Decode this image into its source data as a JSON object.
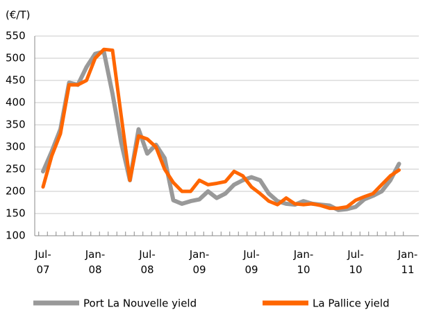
{
  "chart_data": {
    "type": "line",
    "y_label": "(€/T)",
    "categories": [
      "Jul-\n07",
      null,
      null,
      null,
      null,
      null,
      "Jan-\n08",
      null,
      null,
      null,
      null,
      null,
      "Jul-\n08",
      null,
      null,
      null,
      null,
      null,
      "Jan-\n09",
      null,
      null,
      null,
      null,
      null,
      "Jul-\n09",
      null,
      null,
      null,
      null,
      null,
      "Jan-\n10",
      null,
      null,
      null,
      null,
      null,
      "Jul-\n10",
      null,
      null,
      null,
      null,
      null,
      "Jan-\n11"
    ],
    "series": [
      {
        "name": "Port La Nouvelle yield",
        "color": "#999999",
        "values": [
          245,
          290,
          340,
          445,
          440,
          480,
          510,
          515,
          420,
          310,
          225,
          340,
          285,
          305,
          275,
          180,
          172,
          178,
          182,
          200,
          185,
          195,
          215,
          225,
          232,
          225,
          195,
          178,
          172,
          170,
          178,
          172,
          170,
          168,
          158,
          160,
          165,
          182,
          190,
          200,
          225,
          262,
          null
        ]
      },
      {
        "name": "La Pallice yield",
        "color": "#ff6600",
        "values": [
          210,
          280,
          330,
          440,
          440,
          450,
          500,
          520,
          518,
          370,
          225,
          325,
          318,
          300,
          250,
          220,
          200,
          200,
          225,
          215,
          218,
          222,
          245,
          235,
          210,
          195,
          178,
          170,
          185,
          172,
          170,
          172,
          168,
          162,
          162,
          165,
          180,
          188,
          195,
          215,
          235,
          248,
          null
        ]
      }
    ],
    "ylim": [
      100,
      550
    ],
    "yticks": [
      100,
      150,
      200,
      250,
      300,
      350,
      400,
      450,
      500,
      550
    ],
    "grid": true
  }
}
